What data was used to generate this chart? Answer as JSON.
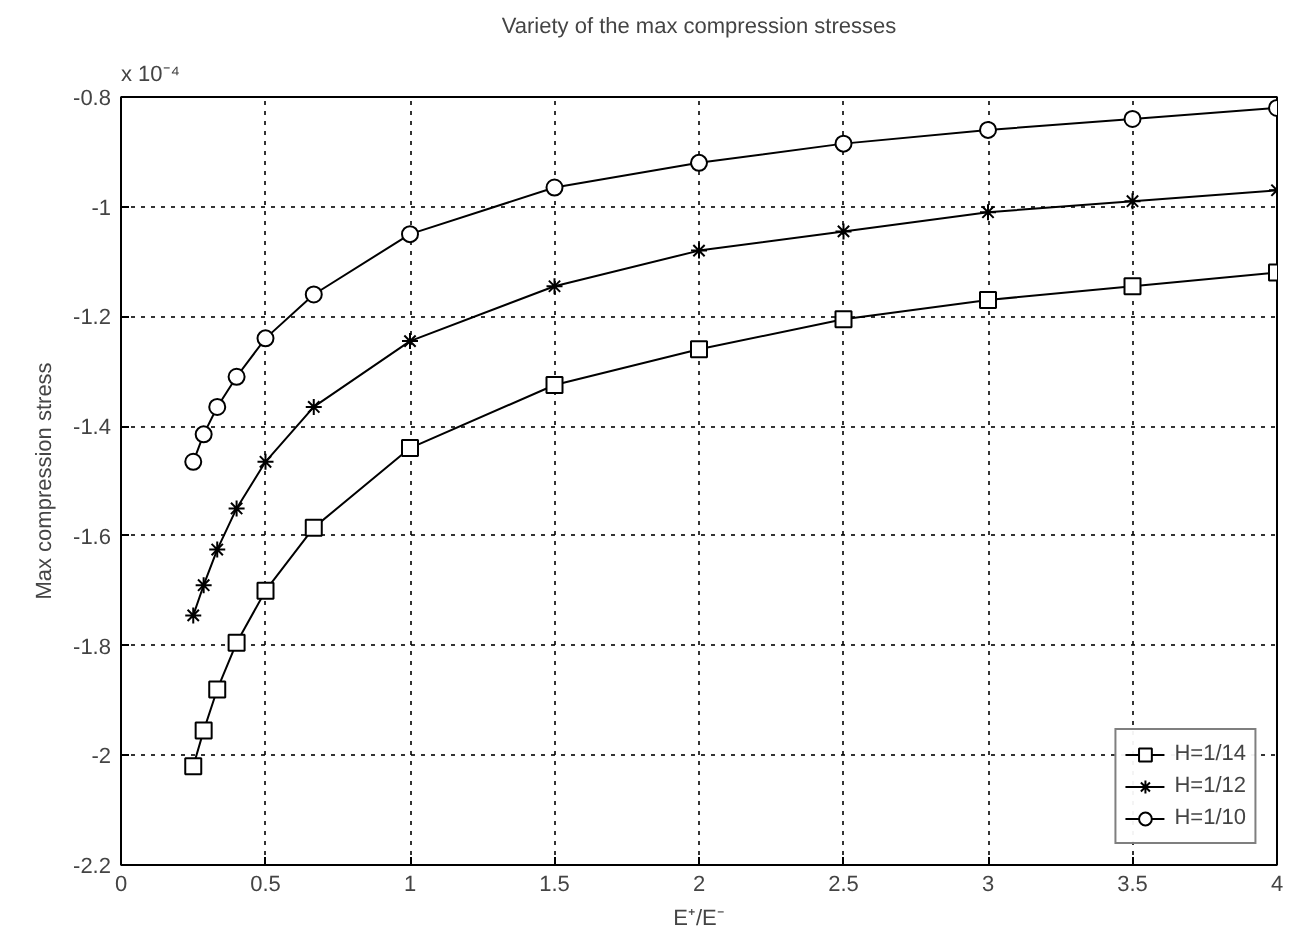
{
  "chart_data": {
    "type": "line",
    "title": "Variety of the max compression stresses",
    "xlabel": "E⁺/E⁻",
    "ylabel": "Max compression stress",
    "annotations": [
      "x 10⁻⁴"
    ],
    "x": [
      0.25,
      0.286,
      0.333,
      0.4,
      0.5,
      0.667,
      1,
      1.5,
      2,
      2.5,
      3,
      3.5,
      4
    ],
    "series": [
      {
        "name": "H=1/14",
        "color": "#000000",
        "marker": "square",
        "values": [
          -2.02,
          -1.955,
          -1.88,
          -1.795,
          -1.7,
          -1.585,
          -1.44,
          -1.325,
          -1.26,
          -1.205,
          -1.17,
          -1.145,
          -1.12
        ]
      },
      {
        "name": "H=1/12",
        "color": "#000000",
        "marker": "cross",
        "values": [
          -1.745,
          -1.69,
          -1.625,
          -1.55,
          -1.465,
          -1.365,
          -1.245,
          -1.145,
          -1.08,
          -1.045,
          -1.01,
          -0.99,
          -0.97
        ]
      },
      {
        "name": "H=1/10",
        "color": "#000000",
        "marker": "circle",
        "values": [
          -1.465,
          -1.415,
          -1.365,
          -1.31,
          -1.24,
          -1.16,
          -1.05,
          -0.965,
          -0.92,
          -0.885,
          -0.86,
          -0.84,
          -0.82
        ]
      }
    ],
    "xlim": [
      0,
      4
    ],
    "ylim": [
      -2.2,
      -0.8
    ],
    "xticks": [
      0,
      0.5,
      1,
      1.5,
      2,
      2.5,
      3,
      3.5,
      4
    ],
    "yticks": [
      -2.2,
      -2,
      -1.8,
      -1.6,
      -1.4,
      -1.2,
      -1,
      -0.8
    ],
    "grid": true,
    "legend": "bottom right",
    "line_style": "solid"
  }
}
